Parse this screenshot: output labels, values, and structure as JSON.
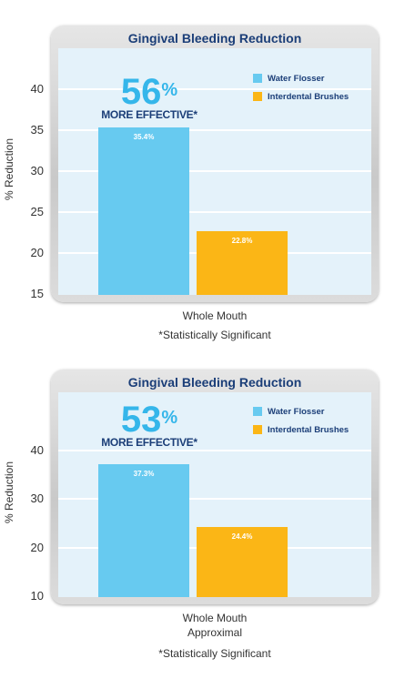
{
  "chart_data": [
    {
      "type": "bar",
      "title": "Gingival Bleeding Reduction",
      "ylabel": "% Reduction",
      "xlabel_lines": [
        "Whole Mouth"
      ],
      "footnote": "*Statistically Significant",
      "ylim": [
        15,
        45
      ],
      "yticks": [
        15,
        20,
        25,
        30,
        35,
        40
      ],
      "callout": {
        "percent": "56",
        "percent_sign": "%",
        "text": "MORE EFFECTIVE*"
      },
      "categories": [
        "Whole Mouth"
      ],
      "series": [
        {
          "name": "Water Flosser",
          "values": [
            35.4
          ],
          "label": "35.4%",
          "color": "#67caf0"
        },
        {
          "name": "Interdental Brushes",
          "values": [
            22.8
          ],
          "label": "22.8%",
          "color": "#fbb616"
        }
      ]
    },
    {
      "type": "bar",
      "title": "Gingival Bleeding Reduction",
      "ylabel": "% Reduction",
      "xlabel_lines": [
        "Whole Mouth",
        "Approximal"
      ],
      "footnote": "*Statistically Significant",
      "ylim": [
        10,
        50
      ],
      "yticks": [
        10,
        20,
        30,
        40
      ],
      "callout": {
        "percent": "53",
        "percent_sign": "%",
        "text": "MORE EFFECTIVE*"
      },
      "categories": [
        "Whole Mouth Approximal"
      ],
      "series": [
        {
          "name": "Water Flosser",
          "values": [
            37.3
          ],
          "label": "37.3%",
          "color": "#67caf0"
        },
        {
          "name": "Interdental Brushes",
          "values": [
            24.4
          ],
          "label": "24.4%",
          "color": "#fbb616"
        }
      ]
    }
  ]
}
